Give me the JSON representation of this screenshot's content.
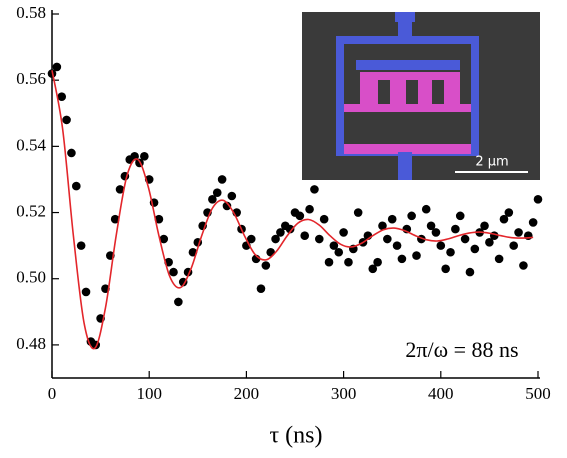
{
  "chart_data": {
    "type": "scatter",
    "xlabel": "τ (ns)",
    "annotation": "2π/ω = 88 ns",
    "inset_scale_label": "2 μm",
    "xlim": [
      0,
      500
    ],
    "ylim": [
      0.47,
      0.58
    ],
    "xticks": [
      0,
      100,
      200,
      300,
      400,
      500
    ],
    "yticks": [
      0.48,
      {
        "value": 0.5,
        "label": "0.50"
      },
      0.52,
      0.54,
      0.56,
      0.58
    ],
    "marker_color": "#000000",
    "x": [
      0,
      5,
      10,
      15,
      20,
      25,
      30,
      35,
      40,
      45,
      50,
      55,
      60,
      65,
      70,
      75,
      80,
      85,
      90,
      95,
      100,
      105,
      110,
      115,
      120,
      125,
      130,
      135,
      140,
      145,
      150,
      155,
      160,
      165,
      170,
      175,
      180,
      185,
      190,
      195,
      200,
      205,
      210,
      215,
      220,
      225,
      230,
      235,
      240,
      245,
      250,
      255,
      260,
      265,
      270,
      275,
      280,
      285,
      290,
      295,
      300,
      305,
      310,
      315,
      320,
      325,
      330,
      335,
      340,
      345,
      350,
      355,
      360,
      365,
      370,
      375,
      380,
      385,
      390,
      395,
      400,
      405,
      410,
      415,
      420,
      425,
      430,
      435,
      440,
      445,
      450,
      455,
      460,
      465,
      470,
      475,
      480,
      485,
      490,
      495,
      500
    ],
    "values": [
      0.562,
      0.564,
      0.555,
      0.548,
      0.538,
      0.528,
      0.51,
      0.496,
      0.481,
      0.48,
      0.488,
      0.497,
      0.507,
      0.518,
      0.527,
      0.531,
      0.536,
      0.537,
      0.535,
      0.537,
      0.53,
      0.523,
      0.518,
      0.512,
      0.505,
      0.502,
      0.493,
      0.499,
      0.502,
      0.508,
      0.511,
      0.516,
      0.52,
      0.524,
      0.526,
      0.53,
      0.522,
      0.525,
      0.52,
      0.515,
      0.51,
      0.512,
      0.506,
      0.497,
      0.504,
      0.508,
      0.512,
      0.514,
      0.516,
      0.515,
      0.52,
      0.519,
      0.513,
      0.521,
      0.527,
      0.512,
      0.518,
      0.505,
      0.51,
      0.508,
      0.514,
      0.505,
      0.509,
      0.52,
      0.511,
      0.513,
      0.503,
      0.505,
      0.516,
      0.512,
      0.518,
      0.51,
      0.506,
      0.515,
      0.519,
      0.507,
      0.512,
      0.521,
      0.516,
      0.514,
      0.51,
      0.503,
      0.508,
      0.515,
      0.519,
      0.512,
      0.502,
      0.509,
      0.514,
      0.516,
      0.511,
      0.513,
      0.506,
      0.518,
      0.52,
      0.51,
      0.514,
      0.504,
      0.513,
      0.517,
      0.524
    ],
    "fit": {
      "color": "#e3262b",
      "x": [
        0,
        11,
        22,
        33,
        44,
        55,
        66,
        77,
        88,
        99,
        110,
        121,
        132,
        143,
        154,
        165,
        176,
        187,
        198,
        209,
        220,
        231,
        242,
        253,
        264,
        275,
        286,
        297,
        308,
        319,
        330,
        341,
        352,
        363,
        374,
        385,
        396,
        407,
        418,
        429,
        440,
        451,
        462,
        473,
        484,
        495
      ],
      "values": [
        0.563,
        0.5451,
        0.513,
        0.4866,
        0.479,
        0.4912,
        0.513,
        0.531,
        0.5361,
        0.5278,
        0.513,
        0.5008,
        0.4973,
        0.503,
        0.513,
        0.5213,
        0.5237,
        0.5199,
        0.513,
        0.5073,
        0.5057,
        0.5083,
        0.513,
        0.5168,
        0.5179,
        0.5162,
        0.513,
        0.5104,
        0.5096,
        0.5108,
        0.513,
        0.5148,
        0.5153,
        0.5145,
        0.513,
        0.5118,
        0.5114,
        0.512,
        0.513,
        0.5138,
        0.5141,
        0.5137,
        0.513,
        0.5124,
        0.5123,
        0.5125
      ]
    }
  }
}
